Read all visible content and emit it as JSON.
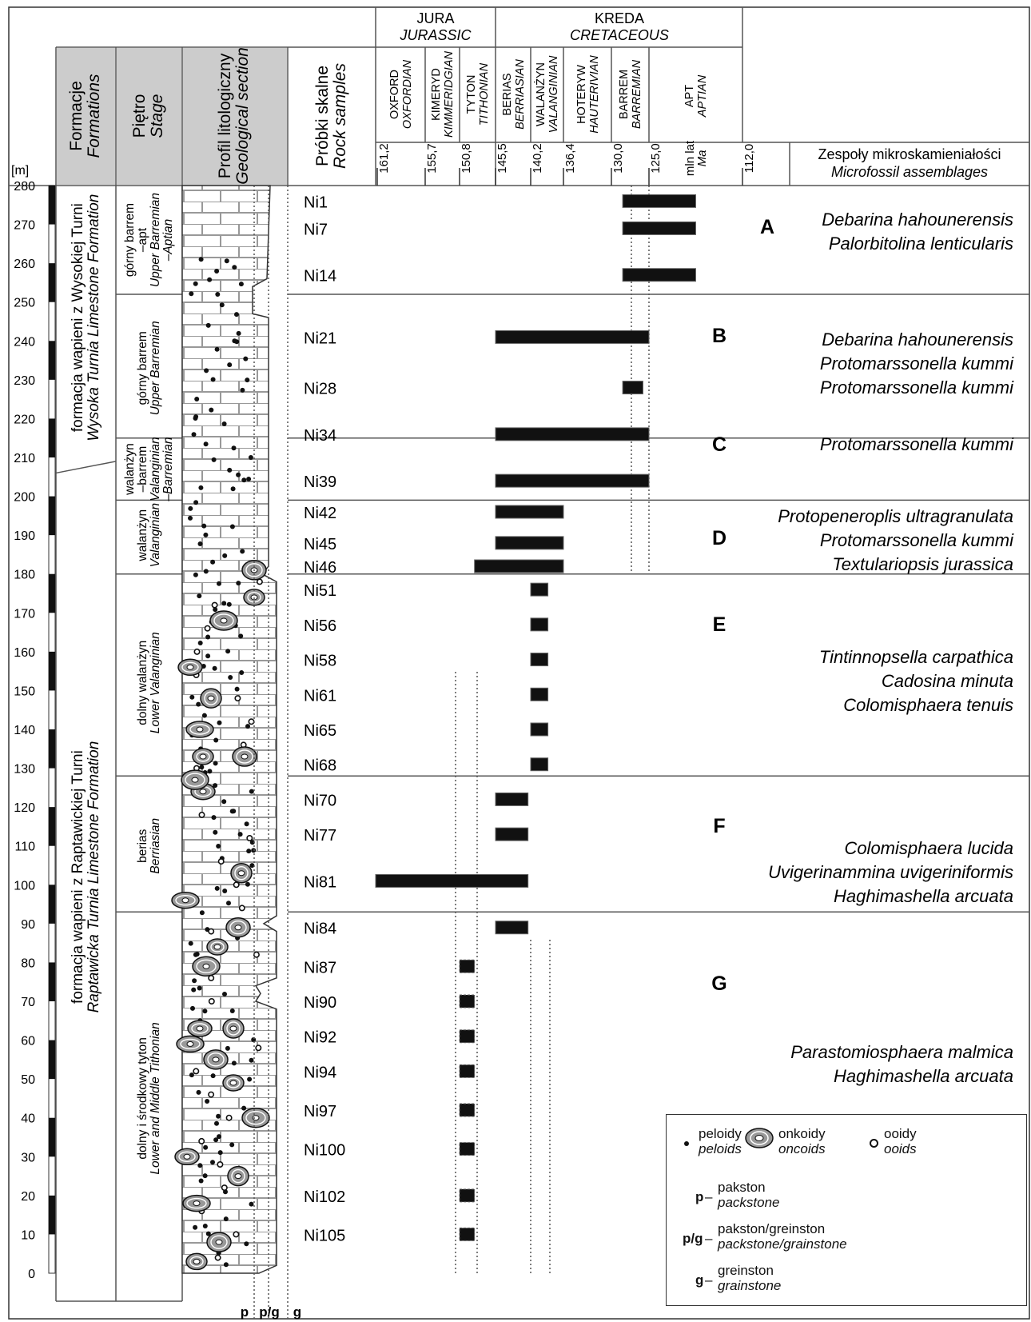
{
  "periods": [
    {
      "pl": "JURA",
      "en": "JURASSIC"
    },
    {
      "pl": "KREDA",
      "en": "CRETACEOUS"
    }
  ],
  "columns": {
    "formations": {
      "pl": "Formacje",
      "en": "Formations"
    },
    "stage": {
      "pl": "Piętro",
      "en": "Stage"
    },
    "profile": {
      "pl": "Profil litologiczny",
      "en": "Geological section"
    },
    "samples": {
      "pl": "Próbki skalne",
      "en": "Rock samples"
    },
    "assemblages": {
      "pl": "Zespoły mikroskamieniałości",
      "en": "Microfossil assemblages"
    }
  },
  "stages_header": [
    {
      "pl": "OXFORD",
      "en": "OXFORDIAN"
    },
    {
      "pl": "KIMERYD",
      "en": "KIMMERIDGIAN"
    },
    {
      "pl": "TYTON",
      "en": "TITHONIAN"
    },
    {
      "pl": "BERIAS",
      "en": "BERRIASIAN"
    },
    {
      "pl": "WALANŻYN",
      "en": "VALANGINIAN"
    },
    {
      "pl": "HOTERYW",
      "en": "HAUTERIVIAN"
    },
    {
      "pl": "BARREM",
      "en": "BARREMIAN"
    },
    {
      "pl": "APT",
      "en": "APTIAN"
    }
  ],
  "ages": [
    "161,2",
    "155,7",
    "150,8",
    "145,5",
    "140,2",
    "136,4",
    "130,0",
    "125,0",
    "112,0"
  ],
  "age_unit": {
    "pl": "mln lat",
    "en": "Ma"
  },
  "depth_unit": "[m]",
  "depth_ticks": [
    0,
    10,
    20,
    30,
    40,
    50,
    60,
    70,
    80,
    90,
    100,
    110,
    120,
    130,
    140,
    150,
    160,
    170,
    180,
    190,
    200,
    210,
    220,
    230,
    240,
    250,
    260,
    270,
    280
  ],
  "formations": [
    {
      "pl": "formacja wapieni z Wysokiej Turni",
      "en": "Wysoka Turnia Limestone Formation"
    },
    {
      "pl": "formacja wapieni z Raptawickiej Turni",
      "en": "Raptawicka Turnia Limestone Formation"
    }
  ],
  "stage_units": [
    {
      "lines": [
        "górny barrem",
        "–apt"
      ],
      "en": [
        "Upper Barremian",
        "–Aptian"
      ]
    },
    {
      "lines": [
        "górny barrem"
      ],
      "en": [
        "Upper Barremian"
      ]
    },
    {
      "lines": [
        "walanżyn",
        "–barrem"
      ],
      "en": [
        "Valanginian",
        "–Barremian"
      ]
    },
    {
      "lines": [
        "walanżyn"
      ],
      "en": [
        "Valanginian"
      ]
    },
    {
      "lines": [
        "dolny walanżyn"
      ],
      "en": [
        "Lower Valanginian"
      ]
    },
    {
      "lines": [
        "berias"
      ],
      "en": [
        "Berriasian"
      ]
    },
    {
      "lines": [
        "dolny i środkowy tyton"
      ],
      "en": [
        "Lower and Middle Tithonian"
      ]
    }
  ],
  "samples": [
    {
      "id": "Ni1",
      "depth": 276,
      "from": 128.5,
      "to": 118.5,
      "dashed": false
    },
    {
      "id": "Ni7",
      "depth": 269,
      "from": 128.5,
      "to": 118.5,
      "dashed": false
    },
    {
      "id": "Ni14",
      "depth": 257,
      "from": 128.5,
      "to": 118.5,
      "dashed": false
    },
    {
      "id": "Ni21",
      "depth": 241,
      "from": 145.5,
      "to": 125.0,
      "dashed": false
    },
    {
      "id": "Ni28",
      "depth": 228,
      "from": 128.5,
      "to": 125.8,
      "dashed": false
    },
    {
      "id": "Ni34",
      "depth": 216,
      "from": 145.5,
      "to": 125.0,
      "dashed": false
    },
    {
      "id": "Ni39",
      "depth": 204,
      "from": 145.5,
      "to": 125.0,
      "dashed": false
    },
    {
      "id": "Ni42",
      "depth": 196,
      "from": 145.5,
      "to": 136.4,
      "dashed": false
    },
    {
      "id": "Ni45",
      "depth": 188,
      "from": 145.5,
      "to": 136.4,
      "dashed": false
    },
    {
      "id": "Ni46",
      "depth": 182,
      "from": 148.6,
      "to": 136.4,
      "dashed": false
    },
    {
      "id": "Ni51",
      "depth": 176,
      "from": 140.2,
      "to": 138.2,
      "dashed": false
    },
    {
      "id": "Ni56",
      "depth": 167,
      "from": 140.2,
      "to": 138.2,
      "dashed": false
    },
    {
      "id": "Ni58",
      "depth": 158,
      "from": 140.2,
      "to": 138.2,
      "dashed": false
    },
    {
      "id": "Ni61",
      "depth": 149,
      "from": 140.2,
      "to": 138.2,
      "dashed": false
    },
    {
      "id": "Ni65",
      "depth": 140,
      "from": 140.2,
      "to": 138.2,
      "dashed": false
    },
    {
      "id": "Ni68",
      "depth": 131,
      "from": 140.2,
      "to": 138.2,
      "dashed": false
    },
    {
      "id": "Ni70",
      "depth": 122,
      "from": 145.5,
      "to": 140.6,
      "dashed": false
    },
    {
      "id": "Ni77",
      "depth": 113,
      "from": 145.5,
      "to": 140.6,
      "dashed": false
    },
    {
      "id": "Ni81",
      "depth": 101,
      "from": 161.2,
      "to": 140.6,
      "dashed": false
    },
    {
      "id": "Ni84",
      "depth": 89,
      "from": 145.5,
      "to": 140.6,
      "dashed": false
    },
    {
      "id": "Ni87",
      "depth": 79,
      "from": 150.8,
      "to": 148.6,
      "dashed": true
    },
    {
      "id": "Ni90",
      "depth": 70,
      "from": 150.8,
      "to": 148.6,
      "dashed": true
    },
    {
      "id": "Ni92",
      "depth": 61,
      "from": 150.8,
      "to": 148.6,
      "dashed": true
    },
    {
      "id": "Ni94",
      "depth": 52,
      "from": 150.8,
      "to": 148.6,
      "dashed": true
    },
    {
      "id": "Ni97",
      "depth": 42,
      "from": 150.8,
      "to": 148.6,
      "dashed": true
    },
    {
      "id": "Ni100",
      "depth": 32,
      "from": 150.8,
      "to": 148.6,
      "dashed": true
    },
    {
      "id": "Ni102",
      "depth": 20,
      "from": 150.8,
      "to": 148.6,
      "dashed": true
    },
    {
      "id": "Ni105",
      "depth": 10,
      "from": 150.8,
      "to": 148.6,
      "dashed": true
    }
  ],
  "assemblages": [
    {
      "letter": "A",
      "taxa": [
        "Debarina hahounerensis",
        "Palorbitolina lenticularis"
      ]
    },
    {
      "letter": "B",
      "taxa": [
        "Debarina hahounerensis",
        "Protomarssonella kummi",
        "Protomarssonella kummi"
      ]
    },
    {
      "letter": "C",
      "taxa": [
        "Protomarssonella kummi"
      ]
    },
    {
      "letter": "D",
      "taxa": [
        "Protopeneroplis ultragranulata",
        "Protomarssonella kummi",
        "Textulariopsis jurassica"
      ]
    },
    {
      "letter": "E",
      "taxa": [
        "Tintinnopsella carpathica",
        "Cadosina minuta",
        "Colomisphaera tenuis"
      ]
    },
    {
      "letter": "F",
      "taxa": [
        "Colomisphaera lucida",
        "Uvigerinammina uvigeriniformis",
        "Haghimashella arcuata"
      ]
    },
    {
      "letter": "G",
      "taxa": [
        "Parastomiosphaera malmica",
        "Haghimashella arcuata"
      ]
    }
  ],
  "legend": {
    "peloids": {
      "pl": "peloidy",
      "en": "peloids"
    },
    "oncoids": {
      "pl": "onkoidy",
      "en": "oncoids"
    },
    "ooids": {
      "pl": "ooidy",
      "en": "ooids"
    },
    "p": {
      "code": "p",
      "pl": "pakston",
      "en": "packstone"
    },
    "pg": {
      "code": "p/g",
      "pl": "pakston/greinston",
      "en": "packstone/grainstone"
    },
    "g": {
      "code": "g",
      "pl": "greinston",
      "en": "grainstone"
    }
  },
  "texture_codes": [
    "p",
    "p/g",
    "g"
  ]
}
